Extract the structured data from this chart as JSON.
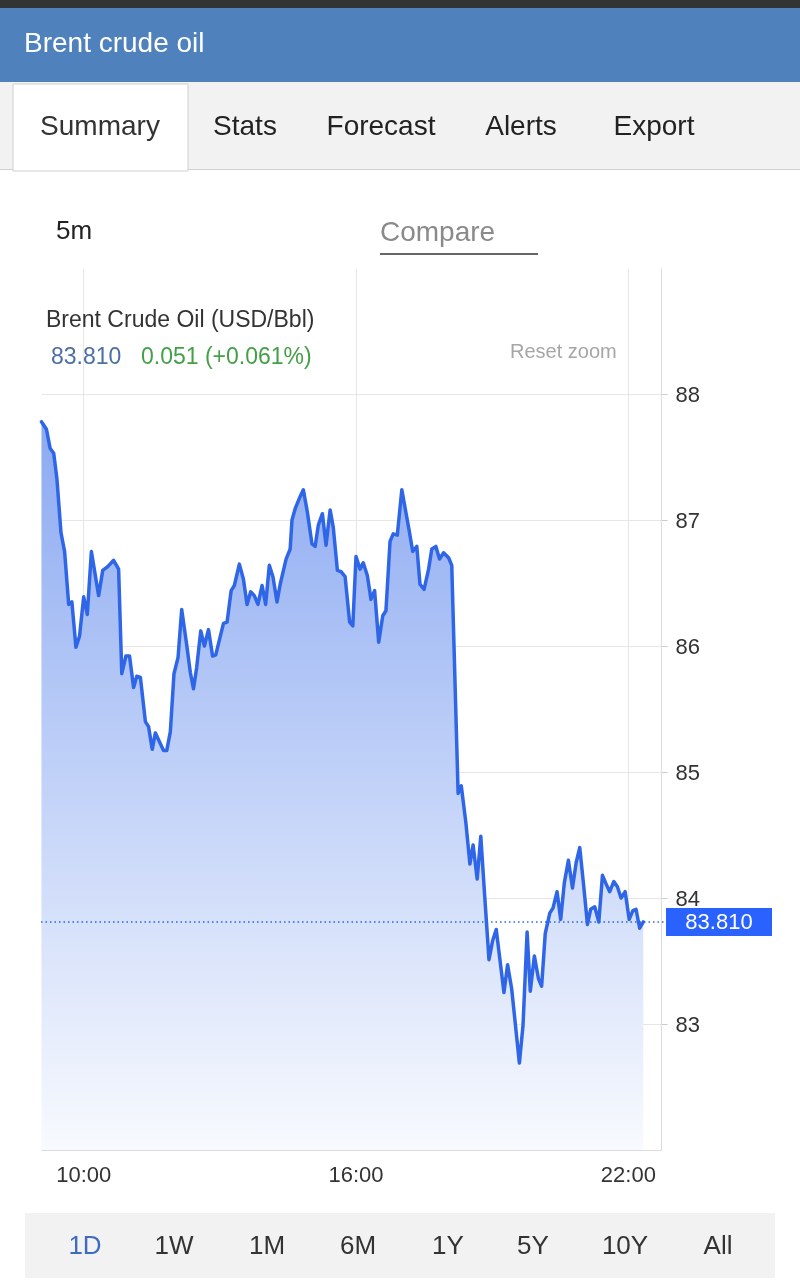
{
  "chart_data": {
    "type": "area",
    "title": "Brent crude oil",
    "subtitle": "Brent Crude Oil (USD/Bbl)",
    "annotations": [
      "Summary",
      "Stats",
      "Forecast",
      "Alerts",
      "Export",
      "5m",
      "Compare",
      "83.810",
      "0.051 (+0.061%)",
      "Reset zoom",
      "1D",
      "1W",
      "1M",
      "6M",
      "1Y",
      "5Y",
      "10Y",
      "All"
    ],
    "x": [
      9.08,
      9.19,
      9.27,
      9.35,
      9.42,
      9.51,
      9.59,
      9.68,
      9.75,
      9.84,
      9.92,
      10.01,
      10.09,
      10.18,
      10.34,
      10.43,
      10.54,
      10.67,
      10.78,
      10.85,
      10.94,
      11.02,
      11.11,
      11.18,
      11.26,
      11.37,
      11.44,
      11.52,
      11.59,
      11.77,
      11.84,
      11.92,
      12.0,
      12.09,
      12.17,
      12.28,
      12.36,
      12.43,
      12.5,
      12.59,
      12.67,
      12.76,
      12.85,
      12.92,
      13.09,
      13.17,
      13.26,
      13.33,
      13.44,
      13.53,
      13.61,
      13.69,
      13.77,
      13.85,
      13.94,
      14.02,
      14.1,
      14.18,
      14.27,
      14.34,
      14.47,
      14.56,
      14.6,
      14.67,
      14.76,
      14.85,
      14.94,
      15.04,
      15.11,
      15.18,
      15.27,
      15.35,
      15.44,
      15.51,
      15.6,
      15.68,
      15.77,
      15.87,
      15.94,
      16.01,
      16.1,
      16.17,
      16.26,
      16.34,
      16.42,
      16.51,
      16.6,
      16.67,
      16.76,
      16.83,
      16.92,
      17.02,
      17.11,
      17.18,
      17.26,
      17.35,
      17.42,
      17.51,
      17.61,
      17.68,
      17.77,
      17.85,
      17.94,
      18.05,
      18.12,
      18.26,
      18.33,
      18.43,
      18.52,
      18.59,
      18.68,
      18.76,
      18.83,
      18.94,
      19.02,
      19.1,
      19.27,
      19.35,
      19.44,
      19.61,
      19.69,
      19.78,
      19.85,
      19.94,
      20.03,
      20.1,
      20.18,
      20.28,
      20.35,
      20.44,
      20.52,
      20.6,
      20.69,
      20.78,
      20.86,
      20.94,
      21.02,
      21.11,
      21.18,
      21.27,
      21.36,
      21.44,
      21.51,
      21.6,
      21.69,
      21.77,
      21.85,
      21.94,
      22.03,
      22.11,
      22.18,
      22.26,
      22.34
    ],
    "series": [
      {
        "color": "#2f66e8",
        "values": [
          87.78,
          87.72,
          87.57,
          87.53,
          87.33,
          86.9,
          86.75,
          86.33,
          86.35,
          85.99,
          86.08,
          86.39,
          86.25,
          86.75,
          86.4,
          86.6,
          86.63,
          86.68,
          86.61,
          85.78,
          85.92,
          85.92,
          85.67,
          85.76,
          85.75,
          85.4,
          85.36,
          85.18,
          85.31,
          85.17,
          85.17,
          85.32,
          85.78,
          85.91,
          86.29,
          86.01,
          85.79,
          85.66,
          85.83,
          86.12,
          86.0,
          86.13,
          85.92,
          85.93,
          86.18,
          86.19,
          86.44,
          86.48,
          86.65,
          86.53,
          86.33,
          86.43,
          86.4,
          86.33,
          86.48,
          86.33,
          86.64,
          86.55,
          86.35,
          86.49,
          86.69,
          86.77,
          87.0,
          87.09,
          87.17,
          87.24,
          87.06,
          86.81,
          86.79,
          86.96,
          87.05,
          86.8,
          87.08,
          86.94,
          86.6,
          86.59,
          86.55,
          86.19,
          86.16,
          86.71,
          86.61,
          86.66,
          86.56,
          86.37,
          86.44,
          86.03,
          86.24,
          86.28,
          86.83,
          86.89,
          86.88,
          87.24,
          87.06,
          86.92,
          86.75,
          86.79,
          86.49,
          86.45,
          86.61,
          86.77,
          86.79,
          86.69,
          86.74,
          86.7,
          86.64,
          84.83,
          84.89,
          84.6,
          84.27,
          84.42,
          84.15,
          84.49,
          84.1,
          83.51,
          83.66,
          83.75,
          83.25,
          83.47,
          83.28,
          82.69,
          82.99,
          83.73,
          83.26,
          83.54,
          83.36,
          83.3,
          83.72,
          83.88,
          83.92,
          84.05,
          83.83,
          84.12,
          84.3,
          84.08,
          84.28,
          84.4,
          84.12,
          83.79,
          83.91,
          83.93,
          83.81,
          84.18,
          84.12,
          84.05,
          84.13,
          84.09,
          84.0,
          84.05,
          83.83,
          83.9,
          83.91,
          83.76,
          83.81
        ]
      }
    ],
    "xlim": [
      9.07,
      22.73
    ],
    "xticks": [
      {
        "value": 10,
        "label": "10:00"
      },
      {
        "value": 16,
        "label": "16:00"
      },
      {
        "value": 22,
        "label": "22:00"
      }
    ],
    "ylim": [
      82,
      89
    ],
    "yticks": [
      83,
      84,
      85,
      86,
      87,
      88
    ],
    "grid": true,
    "ref_lines": [
      {
        "axis": "y",
        "value": 83.81,
        "label": "83.810",
        "color": "#2962ff",
        "line_style": "dotted"
      }
    ]
  }
}
